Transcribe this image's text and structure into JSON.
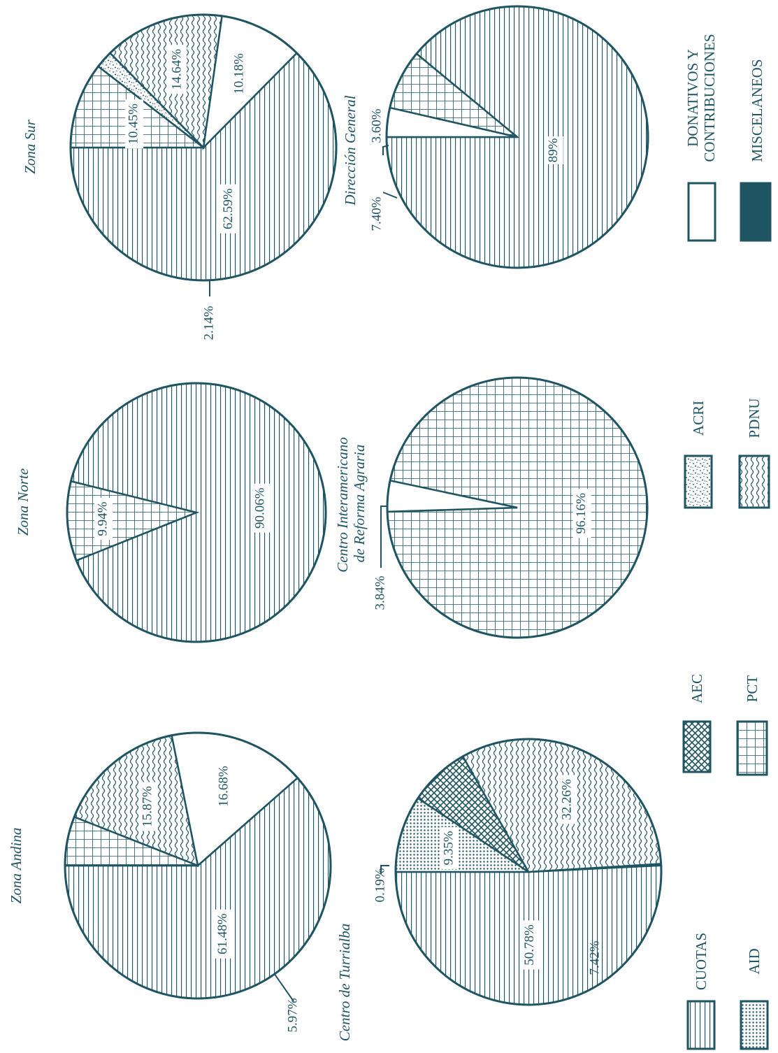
{
  "colors": {
    "ink": "#1f5563",
    "paper": "#ffffff"
  },
  "legend": [
    {
      "key": "cuotas",
      "label": "CUOTAS",
      "pattern": "hlines"
    },
    {
      "key": "aid",
      "label": "AID",
      "pattern": "dots-dense"
    },
    {
      "key": "aec",
      "label": "AEC",
      "pattern": "crosshatch"
    },
    {
      "key": "pct",
      "label": "PCT",
      "pattern": "grid"
    },
    {
      "key": "acri",
      "label": "ACRI",
      "pattern": "speckle"
    },
    {
      "key": "pdnu",
      "label": "PDNU",
      "pattern": "waves"
    },
    {
      "key": "donativos",
      "label_line1": "DONATIVOS  Y",
      "label_line2": "CONTRIBUCIONES",
      "pattern": "solid-white"
    },
    {
      "key": "miscelaneos",
      "label": "MISCELANEOS",
      "pattern": "solid-dark"
    }
  ],
  "chart_data": [
    {
      "type": "pie",
      "title": "Zona Andina",
      "slices": [
        {
          "category": "cuotas",
          "value": 61.48,
          "label": "61.48%"
        },
        {
          "category": "donativos",
          "value": 16.68,
          "label": "16.68%"
        },
        {
          "category": "pdnu",
          "value": 15.87,
          "label": "15.87%"
        },
        {
          "category": "pct",
          "value": 5.97,
          "label": "5.97%"
        }
      ]
    },
    {
      "type": "pie",
      "title": "Centro de Turrialba",
      "slices": [
        {
          "category": "cuotas",
          "value": 50.78,
          "label": "50.78%"
        },
        {
          "category": "miscelaneos",
          "value": 0.19,
          "label": "0.19%"
        },
        {
          "category": "pdnu",
          "value": 32.26,
          "label": "32.26%"
        },
        {
          "category": "aec",
          "value": 7.42,
          "label": "7.42%"
        },
        {
          "category": "aid",
          "value": 9.35,
          "label": "9.35%"
        }
      ]
    },
    {
      "type": "pie",
      "title": "Zona Norte",
      "slices": [
        {
          "category": "cuotas",
          "value": 90.06,
          "label": "90.06%"
        },
        {
          "category": "pct",
          "value": 9.94,
          "label": "9.94%"
        }
      ]
    },
    {
      "type": "pie",
      "title_line1": "Centro Interamericano",
      "title_line2": "de Reforma Agraria",
      "slices": [
        {
          "category": "pct",
          "value": 96.16,
          "label": "96.16%"
        },
        {
          "category": "donativos",
          "value": 3.84,
          "label": "3.84%"
        }
      ]
    },
    {
      "type": "pie",
      "title": "Zona Sur",
      "slices": [
        {
          "category": "cuotas",
          "value": 62.59,
          "label": "62.59%"
        },
        {
          "category": "donativos",
          "value": 10.18,
          "label": "10.18%"
        },
        {
          "category": "pdnu",
          "value": 14.64,
          "label": "14.64%"
        },
        {
          "category": "acri",
          "value": 2.14,
          "label": "2.14%"
        },
        {
          "category": "pct",
          "value": 10.45,
          "label": "10.45%"
        }
      ]
    },
    {
      "type": "pie",
      "title": "Dirección General",
      "slices": [
        {
          "category": "cuotas",
          "value": 89,
          "label": "89%"
        },
        {
          "category": "pct",
          "value": 7.4,
          "label": "7.40%"
        },
        {
          "category": "donativos",
          "value": 3.6,
          "label": "3.60%"
        }
      ]
    }
  ]
}
